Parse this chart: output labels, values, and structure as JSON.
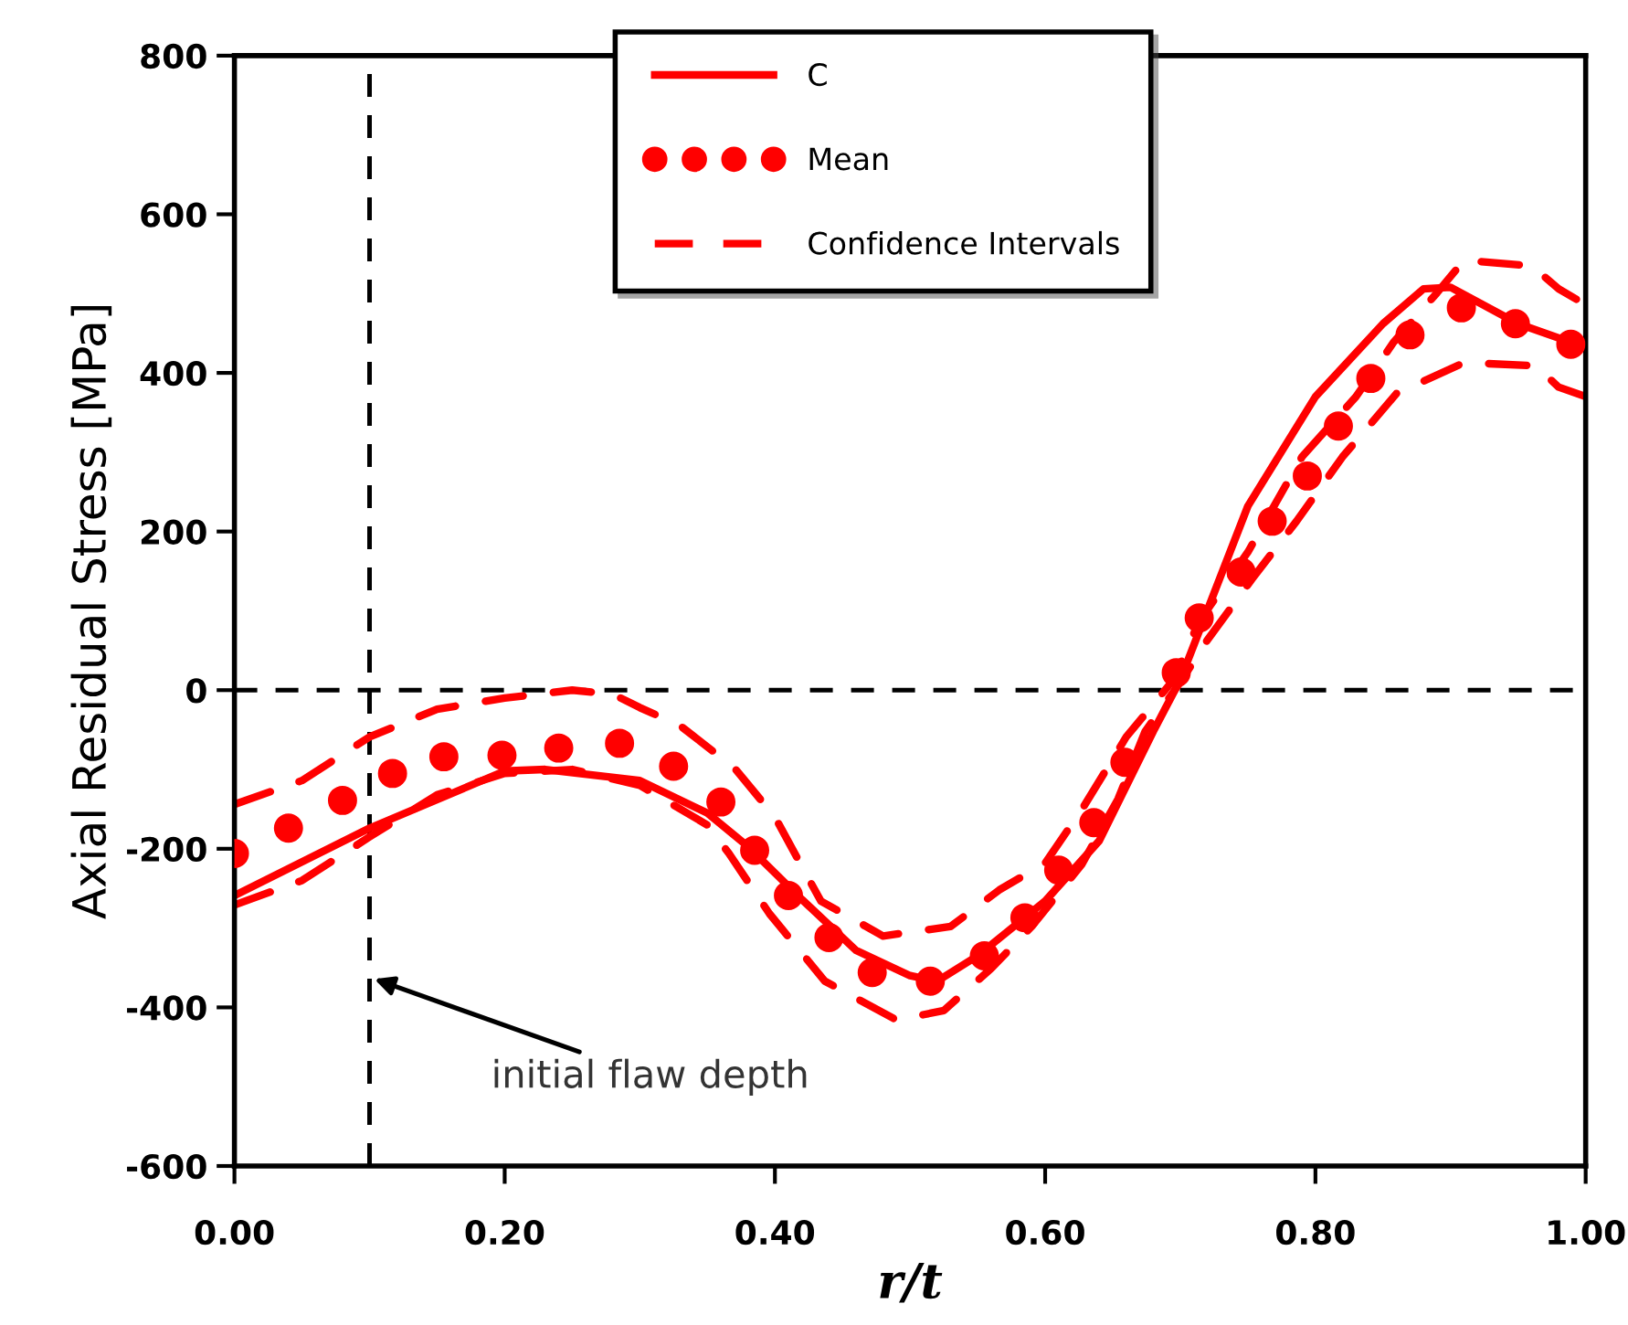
{
  "chart_data": {
    "type": "line",
    "xlabel": "r/t",
    "ylabel": "Axial Residual Stress [MPa]",
    "xlim": [
      0,
      1
    ],
    "ylim": [
      -600,
      800
    ],
    "xticks": [
      {
        "value": 0,
        "label": "0.00"
      },
      {
        "value": 0.2,
        "label": "0.20"
      },
      {
        "value": 0.4,
        "label": "0.40"
      },
      {
        "value": 0.6,
        "label": "0.60"
      },
      {
        "value": 0.8,
        "label": "0.80"
      },
      {
        "value": 1,
        "label": "1.00"
      }
    ],
    "yticks": [
      -600,
      -400,
      -200,
      0,
      200,
      400,
      600,
      800
    ],
    "grid": false,
    "legend": "top",
    "series": [
      {
        "name": "C",
        "color": "#ff0000",
        "line_style": "solid",
        "x": [
          0,
          0.1,
          0.2,
          0.23,
          0.3,
          0.35,
          0.38,
          0.42,
          0.46,
          0.5,
          0.52,
          0.55,
          0.6,
          0.64,
          0.68,
          0.7,
          0.75,
          0.8,
          0.85,
          0.88,
          0.9,
          0.95,
          1.0
        ],
        "values": [
          -259,
          -174,
          -102,
          -100,
          -114,
          -155,
          -197,
          -264,
          -328,
          -360,
          -367,
          -335,
          -266,
          -190,
          -52,
          13,
          232,
          370,
          462,
          506,
          508,
          462,
          432
        ]
      },
      {
        "name": "Mean",
        "color": "#ff0000",
        "type": "scatter",
        "marker": "circle",
        "x": [
          0,
          0.04,
          0.08,
          0.117,
          0.155,
          0.198,
          0.24,
          0.285,
          0.325,
          0.36,
          0.385,
          0.41,
          0.44,
          0.472,
          0.515,
          0.555,
          0.585,
          0.61,
          0.636,
          0.659,
          0.697,
          0.714,
          0.745,
          0.768,
          0.794,
          0.817,
          0.841,
          0.87,
          0.908,
          0.948,
          0.989
        ],
        "values": [
          -206,
          -174,
          -139,
          -105,
          -84,
          -82,
          -73,
          -67,
          -96,
          -141,
          -202,
          -259,
          -312,
          -356,
          -367,
          -335,
          -287,
          -227,
          -167,
          -91,
          22,
          91,
          149,
          213,
          270,
          333,
          393,
          448,
          482,
          462,
          436
        ]
      },
      {
        "name": "Confidence Intervals",
        "color": "#ff0000",
        "line_style": "dashed",
        "x": [
          0,
          0.05,
          0.1,
          0.15,
          0.2,
          0.25,
          0.28,
          0.3,
          0.33,
          0.37,
          0.4,
          0.434,
          0.48,
          0.53,
          0.566,
          0.6,
          0.627,
          0.66,
          0.695,
          0.714,
          0.75,
          0.79,
          0.83,
          0.858,
          0.89,
          0.91,
          0.96,
          0.98,
          1.0
        ],
        "values": [
          -144,
          -114,
          -59,
          -24,
          -10,
          0,
          -5,
          -22,
          -45,
          -98,
          -160,
          -266,
          -310,
          -298,
          -252,
          -218,
          -151,
          -59,
          13,
          87,
          174,
          294,
          370,
          439,
          501,
          542,
          535,
          506,
          486
        ]
      },
      {
        "color": "#ff0000",
        "line_style": "dashed",
        "x": [
          0,
          0.05,
          0.1,
          0.15,
          0.2,
          0.25,
          0.3,
          0.35,
          0.366,
          0.396,
          0.437,
          0.49,
          0.525,
          0.56,
          0.59,
          0.627,
          0.654,
          0.674,
          0.7,
          0.72,
          0.753,
          0.786,
          0.82,
          0.86,
          0.91,
          0.963,
          0.98,
          1.0
        ],
        "values": [
          -271,
          -240,
          -185,
          -132,
          -105,
          -100,
          -120,
          -170,
          -206,
          -282,
          -367,
          -416,
          -404,
          -351,
          -298,
          -220,
          -137,
          -52,
          10,
          63,
          140,
          213,
          294,
          374,
          413,
          409,
          382,
          370
        ]
      }
    ],
    "ref_lines": [
      {
        "axis": "x",
        "value": 0.1,
        "color": "#000000",
        "line_style": "dashed"
      },
      {
        "axis": "y",
        "value": 0,
        "color": "#000000",
        "line_style": "dashed"
      }
    ],
    "annotations": [
      "initial flaw depth"
    ]
  }
}
